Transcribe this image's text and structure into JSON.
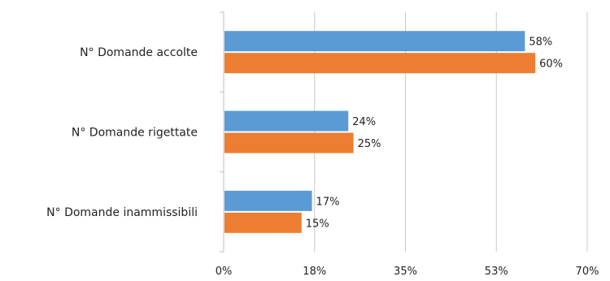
{
  "chart_data": {
    "type": "bar",
    "orientation": "horizontal",
    "categories": [
      "N° Domande accolte",
      "N° Domande rigettate",
      "N° Domande inammissibili"
    ],
    "series": [
      {
        "values": [
          58,
          24,
          17
        ],
        "color": "#5b9bd5"
      },
      {
        "values": [
          60,
          25,
          15
        ],
        "color": "#ed7d31"
      }
    ],
    "x_ticks": [
      "0%",
      "18%",
      "35%",
      "53%",
      "70%"
    ],
    "xlim": [
      0,
      70
    ],
    "value_suffix": "%",
    "grid": true,
    "title": "",
    "xlabel": "",
    "ylabel": ""
  }
}
